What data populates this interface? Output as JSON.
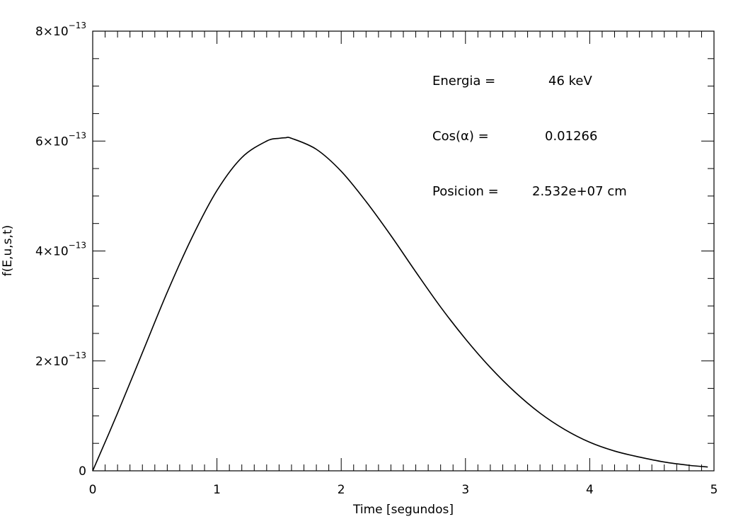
{
  "chart_data": {
    "type": "line",
    "xlabel": "Time [segundos]",
    "ylabel": "f(E,u,s,t)",
    "xlim": [
      0,
      5
    ],
    "ylim": [
      0,
      8e-13
    ],
    "grid": false,
    "x_ticks": [
      0,
      1,
      2,
      3,
      4,
      5
    ],
    "x_tick_labels": [
      "0",
      "1",
      "2",
      "3",
      "4",
      "5"
    ],
    "y_ticks": [
      0,
      2e-13,
      4e-13,
      6e-13,
      8e-13
    ],
    "y_tick_labels": [
      {
        "mantissa": "0",
        "exponent": ""
      },
      {
        "mantissa": "2×10",
        "exponent": "−13"
      },
      {
        "mantissa": "4×10",
        "exponent": "−13"
      },
      {
        "mantissa": "6×10",
        "exponent": "−13"
      },
      {
        "mantissa": "8×10",
        "exponent": "−13"
      }
    ],
    "x_minor_per_major": 10,
    "y_minor_per_major": 4,
    "annotations": [
      {
        "label": "Energia =",
        "value": "46 keV"
      },
      {
        "label": "Cos(α) =",
        "value": "0.01266"
      },
      {
        "label": "Posicion =",
        "value": "2.532e+07 cm"
      }
    ],
    "series": [
      {
        "color": "#000000",
        "x": [
          0,
          0.2,
          0.4,
          0.6,
          0.8,
          1.0,
          1.2,
          1.4,
          1.5,
          1.55,
          1.6,
          1.8,
          2.0,
          2.2,
          2.4,
          2.6,
          2.8,
          3.0,
          3.2,
          3.4,
          3.6,
          3.8,
          4.0,
          4.2,
          4.4,
          4.6,
          4.8,
          4.95
        ],
        "y": [
          0,
          1.05e-13,
          2.15e-13,
          3.25e-13,
          4.25e-13,
          5.1e-13,
          5.7e-13,
          6e-13,
          6.05e-13,
          6.06e-13,
          6.05e-13,
          5.85e-13,
          5.45e-13,
          4.9e-13,
          4.28e-13,
          3.62e-13,
          2.98e-13,
          2.4e-13,
          1.88e-13,
          1.43e-13,
          1.05e-13,
          7.5e-14,
          5.2e-14,
          3.6e-14,
          2.5e-14,
          1.6e-14,
          1e-14,
          7e-15
        ]
      }
    ]
  }
}
